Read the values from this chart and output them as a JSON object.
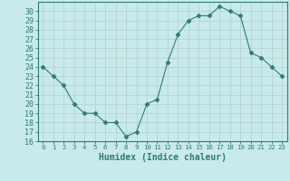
{
  "x": [
    0,
    1,
    2,
    3,
    4,
    5,
    6,
    7,
    8,
    9,
    10,
    11,
    12,
    13,
    14,
    15,
    16,
    17,
    18,
    19,
    20,
    21,
    22,
    23
  ],
  "y": [
    24,
    23,
    22,
    20,
    19,
    19,
    18,
    18,
    16.5,
    17,
    20,
    20.5,
    24.5,
    27.5,
    29,
    29.5,
    29.5,
    30.5,
    30,
    29.5,
    25.5,
    25,
    24,
    23
  ],
  "line_color": "#2e7d6e",
  "marker": "D",
  "marker_size": 2.5,
  "bg_color": "#c8eaea",
  "grid_color": "#b0d0d0",
  "xlabel": "Humidex (Indice chaleur)",
  "ylim": [
    16,
    31
  ],
  "xlim": [
    -0.5,
    23.5
  ],
  "yticks": [
    16,
    17,
    18,
    19,
    20,
    21,
    22,
    23,
    24,
    25,
    26,
    27,
    28,
    29,
    30
  ],
  "xticks": [
    0,
    1,
    2,
    3,
    4,
    5,
    6,
    7,
    8,
    9,
    10,
    11,
    12,
    13,
    14,
    15,
    16,
    17,
    18,
    19,
    20,
    21,
    22,
    23
  ],
  "tick_color": "#2e7d6e",
  "spine_color": "#2e7d6e",
  "font_color": "#2e7d6e",
  "xlabel_fontsize": 7,
  "tick_fontsize": 6
}
